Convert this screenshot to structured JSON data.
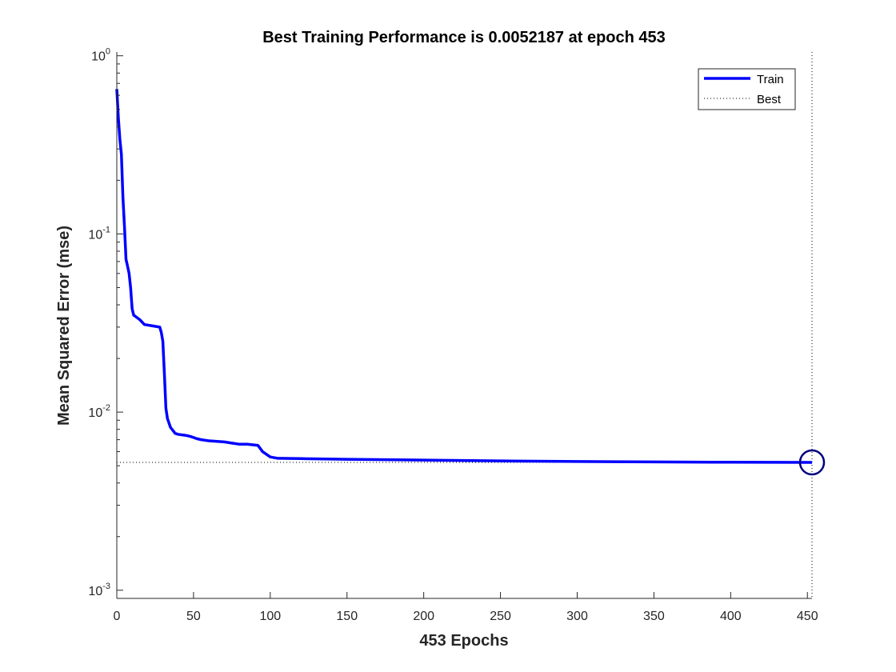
{
  "chart_data": {
    "type": "line",
    "title": "Best Training Performance is 0.0052187 at epoch 453",
    "xlabel": "453 Epochs",
    "ylabel": "Mean Squared Error  (mse)",
    "xlim": [
      0,
      453
    ],
    "ylim": [
      0.0009,
      1.05
    ],
    "yscale": "log",
    "grid": false,
    "legend_position": "top-right",
    "x_ticks": [
      "0",
      "50",
      "100",
      "150",
      "200",
      "250",
      "300",
      "350",
      "400",
      "450"
    ],
    "y_ticks": [
      {
        "base": "10",
        "exp": "0",
        "value": 1
      },
      {
        "base": "10",
        "exp": "-1",
        "value": 0.1
      },
      {
        "base": "10",
        "exp": "-2",
        "value": 0.01
      },
      {
        "base": "10",
        "exp": "-3",
        "value": 0.001
      }
    ],
    "best": {
      "epoch": 453,
      "value": 0.0052187
    },
    "series": [
      {
        "name": "Train",
        "color": "#0000ff",
        "points": [
          [
            0,
            0.65
          ],
          [
            1,
            0.45
          ],
          [
            2,
            0.34
          ],
          [
            3,
            0.28
          ],
          [
            4,
            0.16
          ],
          [
            5,
            0.11
          ],
          [
            6,
            0.072
          ],
          [
            7,
            0.066
          ],
          [
            8,
            0.06
          ],
          [
            9,
            0.05
          ],
          [
            10,
            0.038
          ],
          [
            11,
            0.035
          ],
          [
            13,
            0.034
          ],
          [
            15,
            0.033
          ],
          [
            18,
            0.031
          ],
          [
            23,
            0.0305
          ],
          [
            28,
            0.03
          ],
          [
            29,
            0.028
          ],
          [
            30,
            0.025
          ],
          [
            31,
            0.0165
          ],
          [
            32,
            0.0105
          ],
          [
            33,
            0.0092
          ],
          [
            35,
            0.0082
          ],
          [
            36,
            0.008
          ],
          [
            38,
            0.0076
          ],
          [
            40,
            0.0075
          ],
          [
            45,
            0.0074
          ],
          [
            48,
            0.0073
          ],
          [
            50,
            0.0072
          ],
          [
            52,
            0.0071
          ],
          [
            55,
            0.007
          ],
          [
            60,
            0.0069
          ],
          [
            70,
            0.0068
          ],
          [
            75,
            0.0067
          ],
          [
            80,
            0.0066
          ],
          [
            85,
            0.0066
          ],
          [
            92,
            0.0065
          ],
          [
            95,
            0.006
          ],
          [
            100,
            0.0056
          ],
          [
            105,
            0.0055
          ],
          [
            120,
            0.00548
          ],
          [
            150,
            0.00543
          ],
          [
            200,
            0.00538
          ],
          [
            250,
            0.00532
          ],
          [
            300,
            0.00528
          ],
          [
            350,
            0.00525
          ],
          [
            400,
            0.00523
          ],
          [
            453,
            0.0052187
          ]
        ]
      },
      {
        "name": "Best",
        "color": "#000000",
        "style": "dotted"
      }
    ]
  }
}
